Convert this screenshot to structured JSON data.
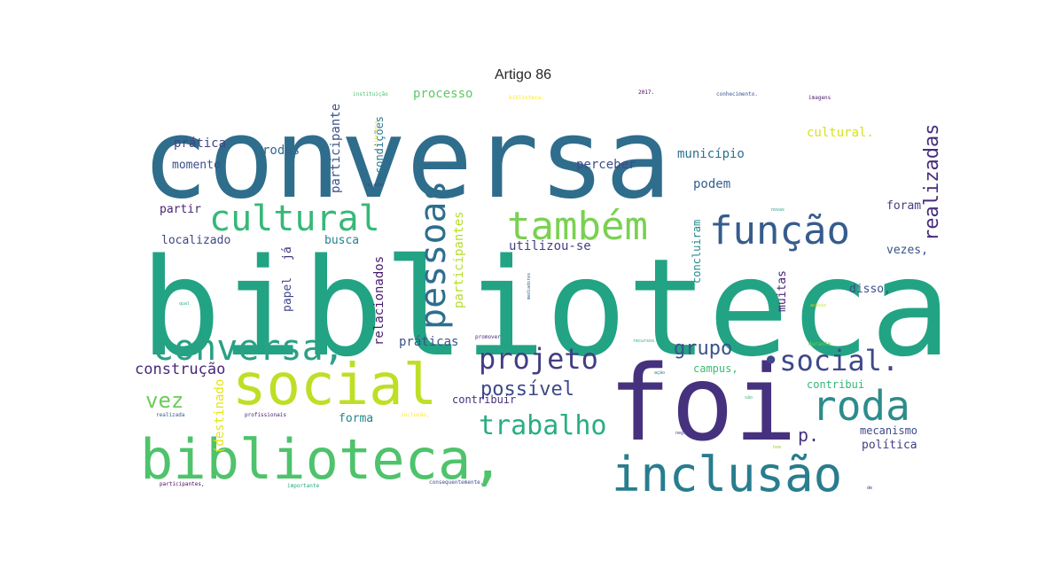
{
  "figure": {
    "title": "Artigo 86"
  },
  "words": [
    {
      "text": "conversa",
      "color": "#2f6d8c"
    },
    {
      "text": "biblioteca",
      "color": "#22a384"
    },
    {
      "text": "foi",
      "color": "#46317e"
    },
    {
      "text": "social",
      "color": "#bddf26"
    },
    {
      "text": "biblioteca,",
      "color": "#4ec36b"
    },
    {
      "text": "inclusão",
      "color": "#287d8e"
    },
    {
      "text": "também",
      "color": "#7ad151"
    },
    {
      "text": "função",
      "color": "#365c8d"
    },
    {
      "text": "cultural",
      "color": "#37b878"
    },
    {
      "text": "pessoas",
      "color": "#2e6e8e"
    },
    {
      "text": "conversa,",
      "color": "#2ba085"
    },
    {
      "text": "roda",
      "color": "#2c8c8b"
    },
    {
      "text": "•social.",
      "color": "#3f4889"
    },
    {
      "text": "projeto",
      "color": "#433e85"
    },
    {
      "text": "trabalho",
      "color": "#29af7f"
    },
    {
      "text": "realizadas",
      "color": "#472d7b"
    },
    {
      "text": "grupo",
      "color": "#3b528b"
    },
    {
      "text": "possível",
      "color": "#3e4989"
    },
    {
      "text": "vez",
      "color": "#6ccd5a"
    },
    {
      "text": "construção",
      "color": "#482878"
    },
    {
      "text": "participante",
      "color": "#3b528b"
    },
    {
      "text": "processo",
      "color": "#5ec962"
    },
    {
      "text": "prática",
      "color": "#414487"
    },
    {
      "text": "momento",
      "color": "#3d4e8a"
    },
    {
      "text": "rodas",
      "color": "#31688e"
    },
    {
      "text": "condições",
      "color": "#2a768e"
    },
    {
      "text": "participantes",
      "color": "#b5de2b"
    },
    {
      "text": "perceber",
      "color": "#3e4c8a"
    },
    {
      "text": "município",
      "color": "#2d708e"
    },
    {
      "text": "cultural.",
      "color": "#d8e219"
    },
    {
      "text": "podem",
      "color": "#355f8d"
    },
    {
      "text": "foram",
      "color": "#433d84"
    },
    {
      "text": "partir",
      "color": "#482475"
    },
    {
      "text": "localizado",
      "color": "#3f4788"
    },
    {
      "text": "busca",
      "color": "#26828e"
    },
    {
      "text": "utilizou-se",
      "color": "#433e85"
    },
    {
      "text": "concluiram",
      "color": "#23898e"
    },
    {
      "text": "vezes,",
      "color": "#3b528b"
    },
    {
      "text": "relacionados",
      "color": "#481a6c"
    },
    {
      "text": "papel",
      "color": "#404688"
    },
    {
      "text": "já",
      "color": "#46327e"
    },
    {
      "text": "disso,",
      "color": "#3d4d8a"
    },
    {
      "text": "muitas",
      "color": "#482576"
    },
    {
      "text": "práticas",
      "color": "#3b528b"
    },
    {
      "text": "campus,",
      "color": "#3dbc74"
    },
    {
      "text": "contribui",
      "color": "#34b679"
    },
    {
      "text": "contribuir",
      "color": "#472e7c"
    },
    {
      "text": "(destinado",
      "color": "#e5e419"
    },
    {
      "text": "forma",
      "color": "#26828e"
    },
    {
      "text": "mecanismo",
      "color": "#3e4a89"
    },
    {
      "text": "política",
      "color": "#433d84"
    },
    {
      "text": "p.",
      "color": "#46327e"
    },
    {
      "text": "instituição",
      "color": "#4ac16d"
    },
    {
      "text": "2017.",
      "color": "#440154"
    },
    {
      "text": "conhecimento.",
      "color": "#39568c"
    },
    {
      "text": "imagens",
      "color": "#481b6d"
    },
    {
      "text": "biblioteca.",
      "color": "#fde725"
    },
    {
      "text": "literária",
      "color": "#d0e11c"
    },
    {
      "text": "relação",
      "color": "#414487"
    },
    {
      "text": "qual",
      "color": "#2db27d"
    },
    {
      "text": "mediadores",
      "color": "#32648e"
    },
    {
      "text": "promover",
      "color": "#472c7a"
    },
    {
      "text": "recursos",
      "color": "#20a486"
    },
    {
      "text": "durante",
      "color": "#6ece58"
    },
    {
      "text": "realizada",
      "color": "#355f8d"
    },
    {
      "text": "profissionais",
      "color": "#481668"
    },
    {
      "text": "inclusão,",
      "color": "#fde725"
    },
    {
      "text": "negros",
      "color": "#433e85"
    },
    {
      "text": "bem",
      "color": "#a0da39"
    },
    {
      "text": "participantes,",
      "color": "#46085c"
    },
    {
      "text": "importante",
      "color": "#22a884"
    },
    {
      "text": "consequentemente,",
      "color": "#3e4989"
    },
    {
      "text": "acesso",
      "color": "#c2df23"
    },
    {
      "text": "novas",
      "color": "#1f9f88"
    },
    {
      "text": "ação",
      "color": "#2a788e"
    },
    {
      "text": "são",
      "color": "#35b779"
    },
    {
      "text": "de",
      "color": "#472a7a"
    }
  ]
}
